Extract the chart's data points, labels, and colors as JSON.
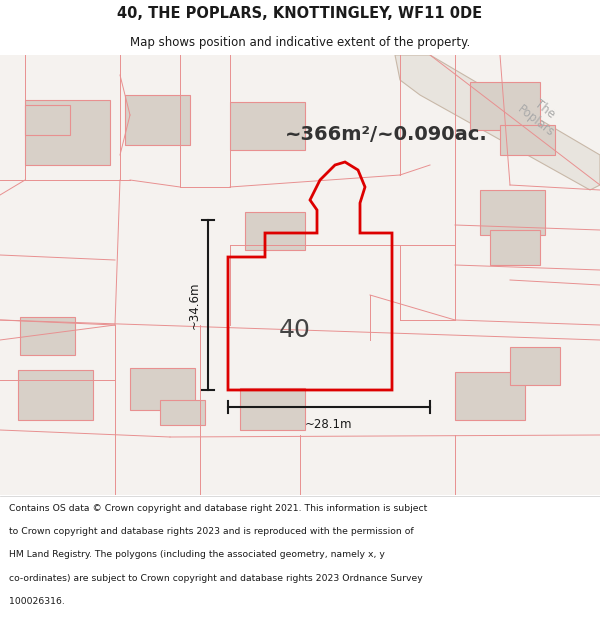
{
  "title": "40, THE POPLARS, KNOTTINGLEY, WF11 0DE",
  "subtitle": "Map shows position and indicative extent of the property.",
  "area_text": "~366m²/~0.090ac.",
  "dim_width": "~28.1m",
  "dim_height": "~34.6m",
  "label_40": "40",
  "road_label": "The\nPoplars",
  "footer_lines": [
    "Contains OS data © Crown copyright and database right 2021. This information is subject",
    "to Crown copyright and database rights 2023 and is reproduced with the permission of",
    "HM Land Registry. The polygons (including the associated geometry, namely x, y",
    "co-ordinates) are subject to Crown copyright and database rights 2023 Ordnance Survey",
    "100026316."
  ],
  "map_bg": "#f5f2ef",
  "building_fill": "#d8d0c8",
  "plot_line_color": "#dd0000",
  "parcel_line_color": "#e89090",
  "road_line_color": "#c8b8a8",
  "dim_line_color": "#1a1a1a",
  "title_color": "#1a1a1a",
  "footer_color": "#1a1a1a",
  "road_text_color": "#aaaaaa",
  "area_text_color": "#333333"
}
